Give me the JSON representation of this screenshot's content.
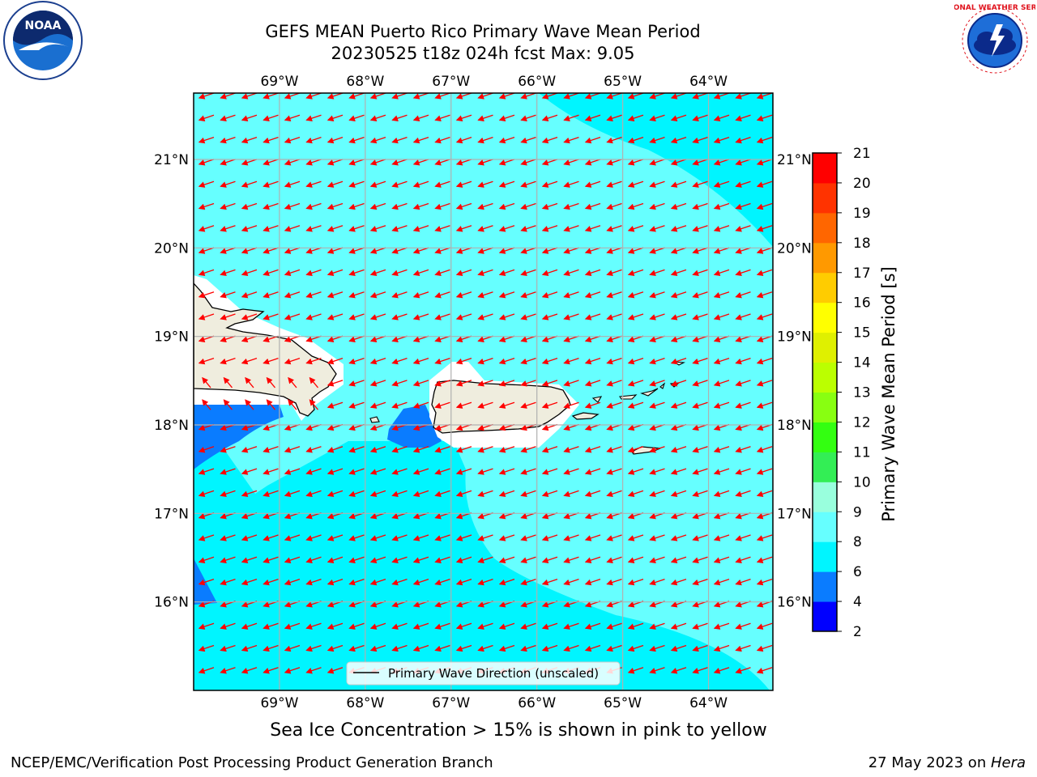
{
  "header": {
    "title_line1": "GEFS MEAN Puerto Rico Primary Wave Mean Period",
    "title_line2": "20230525 t18z 024h fcst   Max: 9.05"
  },
  "map": {
    "lon_labels": [
      "69°W",
      "68°W",
      "67°W",
      "66°W",
      "65°W",
      "64°W"
    ],
    "lon_values": [
      -69,
      -68,
      -67,
      -66,
      -65,
      -64
    ],
    "lat_labels": [
      "21°N",
      "20°N",
      "19°N",
      "18°N",
      "17°N",
      "16°N"
    ],
    "lat_values": [
      21,
      20,
      19,
      18,
      17,
      16
    ],
    "extent": {
      "lon_min": -70.0,
      "lon_max": -63.25,
      "lat_min": 15.0,
      "lat_max": 21.75
    },
    "legend_text": "Primary Wave Direction (unscaled)",
    "arrow_color": "#ff0000",
    "land_color": "#efedde",
    "grid_color": "#b0b0b0"
  },
  "colorbar": {
    "label": "Primary Wave Mean Period [s]",
    "ticks": [
      "2",
      "4",
      "6",
      "8",
      "9",
      "10",
      "11",
      "12",
      "13",
      "14",
      "15",
      "16",
      "17",
      "18",
      "19",
      "20",
      "21"
    ],
    "colors": [
      "#0000ff",
      "#0a7cff",
      "#00f5ff",
      "#66ffff",
      "#99ffdd",
      "#33ee55",
      "#33ff11",
      "#88ff11",
      "#bbff00",
      "#dff000",
      "#ffff00",
      "#ffcc00",
      "#ff9900",
      "#ff6600",
      "#ff3300",
      "#ff0000"
    ]
  },
  "footer": {
    "subtitle": "Sea Ice Concentration > 15% is shown in pink to yellow",
    "left": "NCEP/EMC/Verification Post Processing Product Generation Branch",
    "right_date": "27 May 2023 on ",
    "right_host": "Hera"
  },
  "logos": {
    "noaa_text": "NOAA",
    "nws_text": "NATIONAL WEATHER SERVICE"
  }
}
